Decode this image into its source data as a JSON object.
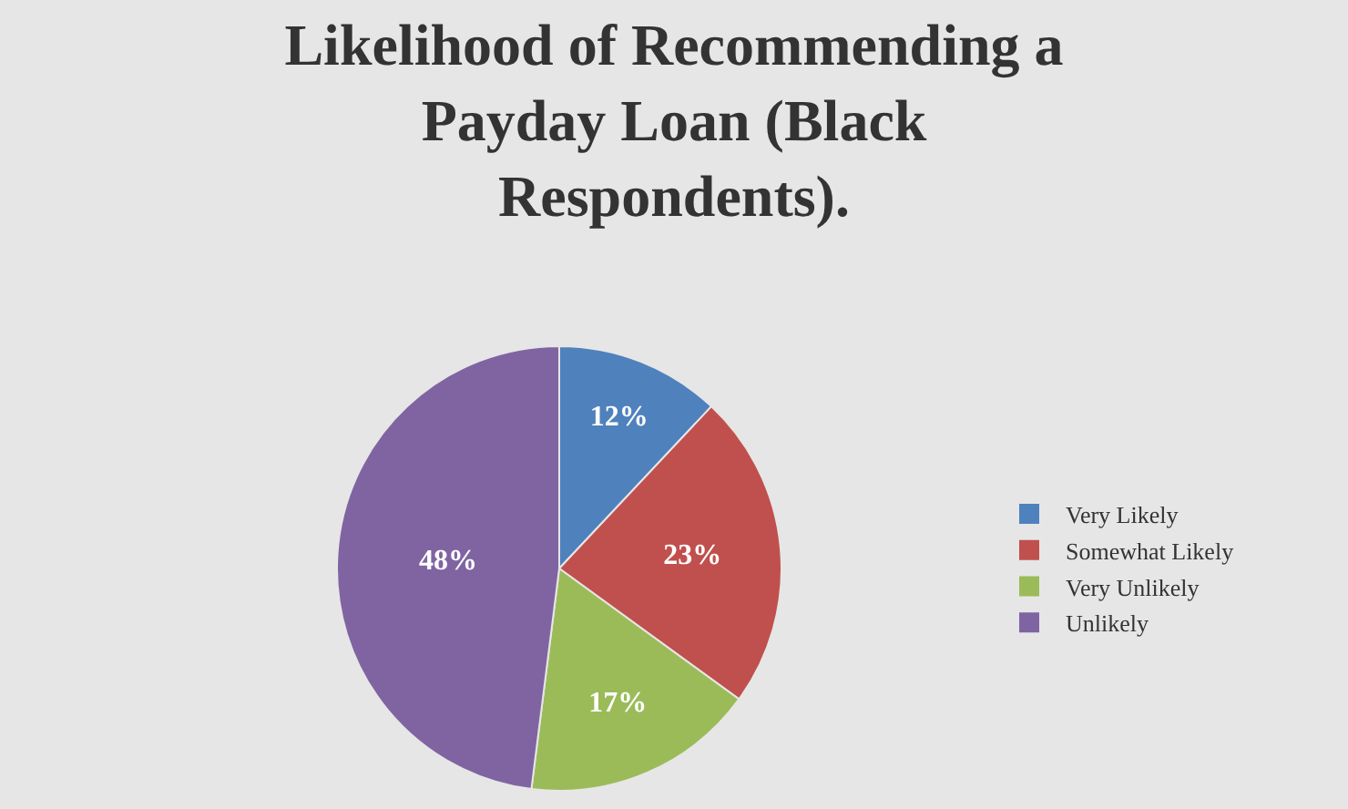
{
  "chart_data": {
    "type": "pie",
    "title": "Likelihood of Recommending a Payday Loan (Black Respondents).",
    "categories": [
      "Very Likely",
      "Somewhat Likely",
      "Very Unlikely",
      "Unlikely"
    ],
    "values": [
      12,
      23,
      17,
      48
    ],
    "colors": [
      "#4f81bd",
      "#c0504d",
      "#9bbb59",
      "#8064a2"
    ],
    "value_labels": [
      "12%",
      "23%",
      "17%",
      "48%"
    ],
    "legend": "right"
  }
}
